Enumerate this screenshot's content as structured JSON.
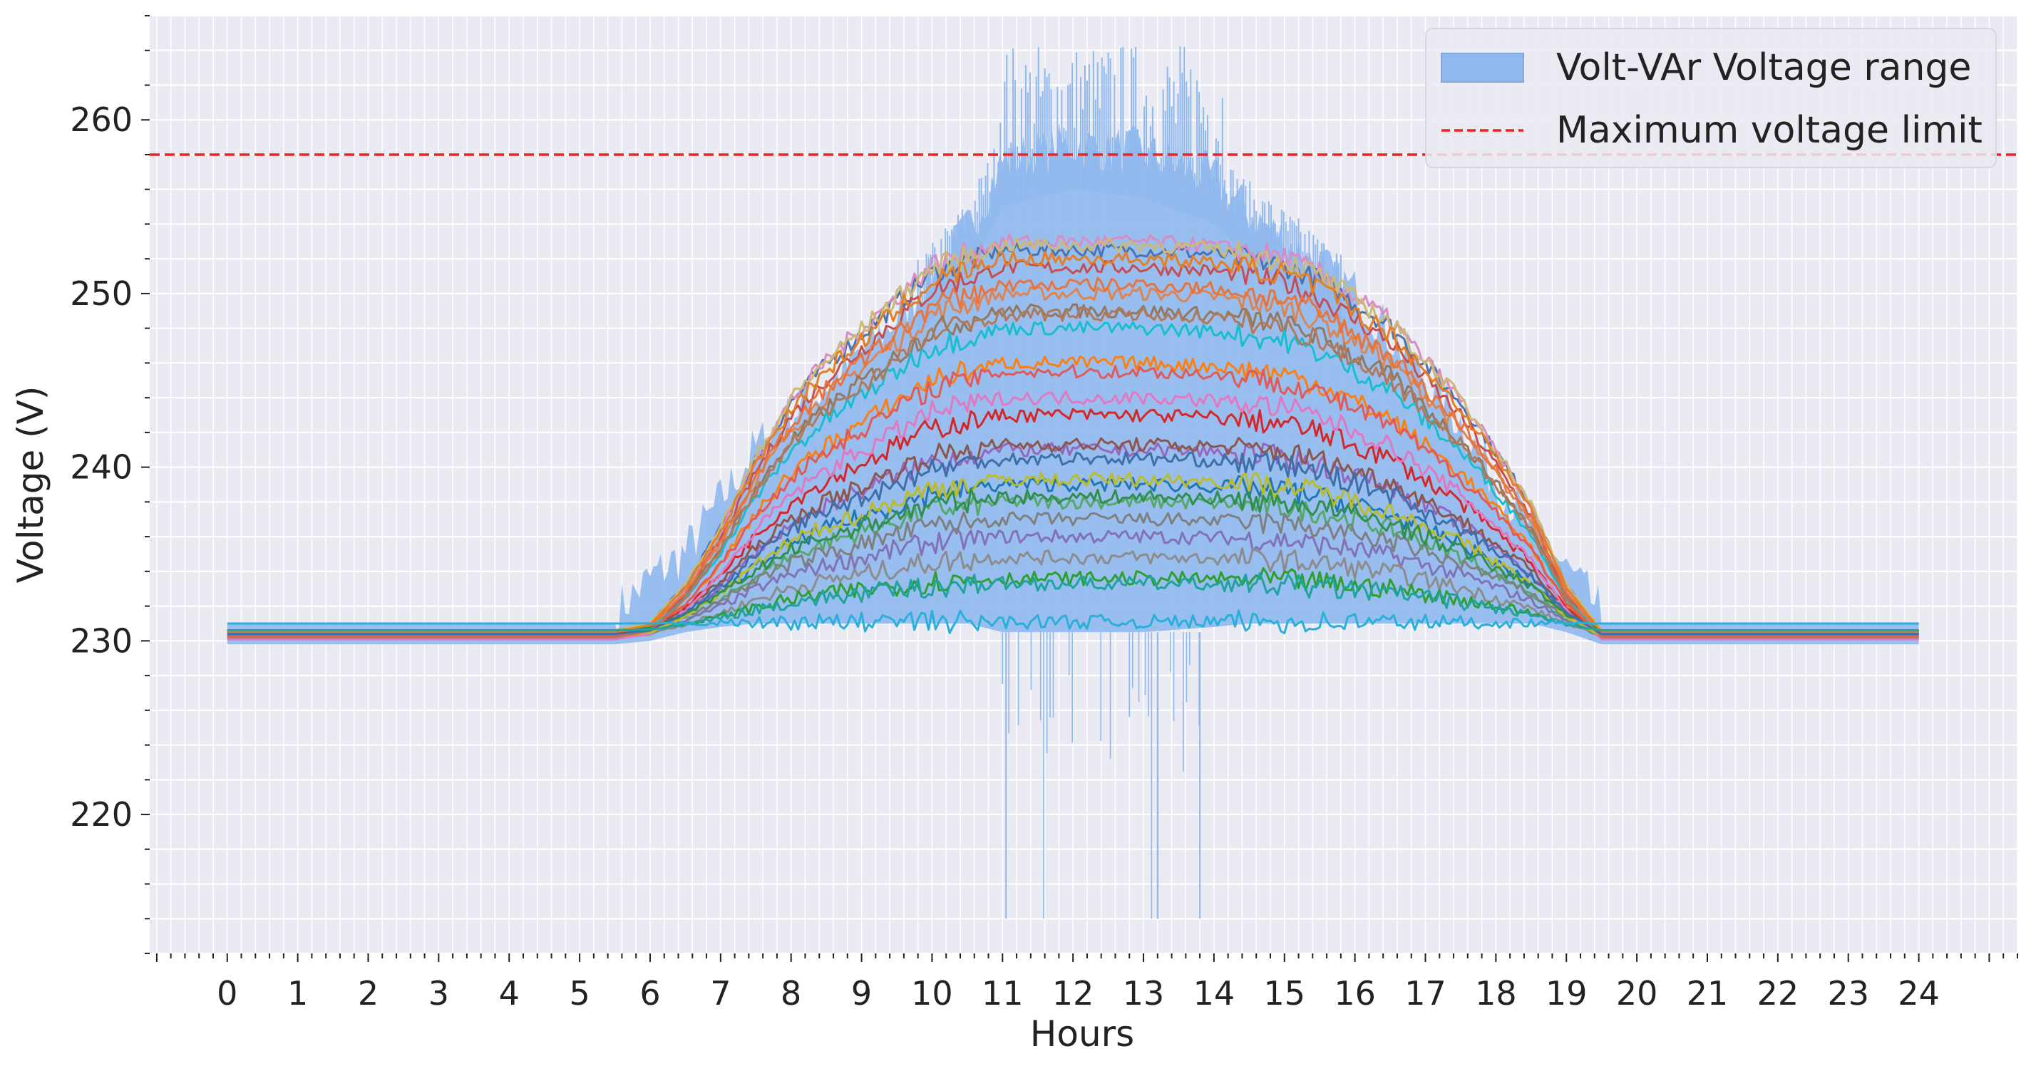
{
  "chart_data": {
    "type": "line",
    "xlabel": "Hours",
    "ylabel": "Voltage (V)",
    "xlim": [
      -1.1,
      25.4
    ],
    "ylim": [
      212,
      266
    ],
    "x_ticks": [
      "0",
      "1",
      "2",
      "3",
      "4",
      "5",
      "6",
      "7",
      "8",
      "9",
      "10",
      "11",
      "12",
      "13",
      "14",
      "15",
      "16",
      "17",
      "18",
      "19",
      "20",
      "21",
      "22",
      "23",
      "24"
    ],
    "y_ticks": [
      "220",
      "230",
      "240",
      "250",
      "260"
    ],
    "grid": true,
    "legend_position": "top-right",
    "colors": {
      "background": "#eaeaf2",
      "grid": "#ffffff",
      "range_fill": "#8fb8ee",
      "limit_line": "#ee2222",
      "baseline": "#2ab0d8"
    },
    "legend": [
      {
        "label": "Volt-VAr Voltage range",
        "kind": "area"
      },
      {
        "label": "Maximum voltage limit",
        "kind": "dashed-line"
      }
    ],
    "max_voltage_limit": 258,
    "range_envelope": {
      "hours": [
        0,
        5.5,
        6,
        6.5,
        7,
        7.5,
        8,
        8.5,
        9,
        9.5,
        10,
        10.5,
        11,
        12,
        13,
        14,
        14.5,
        15,
        15.5,
        16,
        16.5,
        17,
        17.5,
        18,
        18.5,
        19,
        19.5,
        20,
        24
      ],
      "upper": [
        231,
        231,
        233,
        234.5,
        237.5,
        240.5,
        242.5,
        244,
        246,
        248,
        250.5,
        253,
        257,
        258,
        257.5,
        256,
        254,
        252.5,
        251,
        249.5,
        247,
        244.5,
        242,
        238.5,
        236,
        233.5,
        231,
        231,
        231
      ],
      "lower": [
        229.8,
        229.8,
        230,
        230.5,
        230.8,
        231,
        231,
        231,
        231,
        231,
        231,
        231,
        230.5,
        230.5,
        230.5,
        230.8,
        231,
        231,
        231,
        231,
        231,
        231,
        231,
        231,
        231,
        230.5,
        229.8,
        229.8,
        229.8
      ]
    },
    "range_dips_to": 214,
    "range_spikes_to": 264.5,
    "series_profile": {
      "hours": [
        0,
        5.5,
        6,
        6.5,
        7,
        7.5,
        8,
        8.5,
        9,
        9.5,
        10,
        11,
        12,
        13,
        14,
        15,
        15.5,
        16,
        16.5,
        17,
        17.5,
        18,
        18.5,
        19,
        19.5,
        20,
        24
      ],
      "shape": [
        0,
        0,
        0.02,
        0.12,
        0.27,
        0.45,
        0.6,
        0.7,
        0.78,
        0.86,
        0.94,
        1,
        1,
        1,
        0.99,
        0.96,
        0.92,
        0.86,
        0.8,
        0.7,
        0.6,
        0.47,
        0.33,
        0.12,
        0,
        0,
        0
      ]
    },
    "series": [
      {
        "color": "#4c72b0",
        "peak": 252.5,
        "night": 230.6
      },
      {
        "color": "#dd8452",
        "peak": 250,
        "night": 230.4
      },
      {
        "color": "#55a868",
        "peak": 238,
        "night": 230.2
      },
      {
        "color": "#c44e52",
        "peak": 251.5,
        "night": 230.1
      },
      {
        "color": "#8172b3",
        "peak": 236,
        "night": 230.5
      },
      {
        "color": "#937860",
        "peak": 249,
        "night": 230.3
      },
      {
        "color": "#da8bc3",
        "peak": 253,
        "night": 230.2
      },
      {
        "color": "#8c8c8c",
        "peak": 234.8,
        "night": 230.4
      },
      {
        "color": "#ccb974",
        "peak": 252.8,
        "night": 230.6
      },
      {
        "color": "#17becf",
        "peak": 248,
        "night": 230.3
      },
      {
        "color": "#1f77b4",
        "peak": 239,
        "night": 230.5
      },
      {
        "color": "#ff7f0e",
        "peak": 246,
        "night": 230.2
      },
      {
        "color": "#2ca02c",
        "peak": 233.6,
        "night": 230.6
      },
      {
        "color": "#d62728",
        "peak": 243,
        "night": 230.4
      },
      {
        "color": "#9467bd",
        "peak": 241,
        "night": 230.3
      },
      {
        "color": "#8c564b",
        "peak": 241.3,
        "night": 230.5
      },
      {
        "color": "#e377c2",
        "peak": 244,
        "night": 230.1
      },
      {
        "color": "#7f7f7f",
        "peak": 237,
        "night": 230.6
      },
      {
        "color": "#bcbd22",
        "peak": 239.3,
        "night": 230.3
      },
      {
        "color": "#e8743b",
        "peak": 250.5,
        "night": 230.4
      },
      {
        "color": "#2f8f4e",
        "peak": 238.3,
        "night": 230.6
      },
      {
        "color": "#e05a5a",
        "peak": 245.5,
        "night": 230.3
      },
      {
        "color": "#b07a5a",
        "peak": 248.8,
        "night": 230.2
      },
      {
        "color": "#e67e22",
        "peak": 252,
        "night": 230.5
      },
      {
        "color": "#3d6fa8",
        "peak": 240.5,
        "night": 230.4
      },
      {
        "color": "#20a39e",
        "peak": 233.3,
        "night": 230.6
      },
      {
        "color": "#2ab0d8",
        "peak": 231.1,
        "night": 231
      }
    ]
  }
}
